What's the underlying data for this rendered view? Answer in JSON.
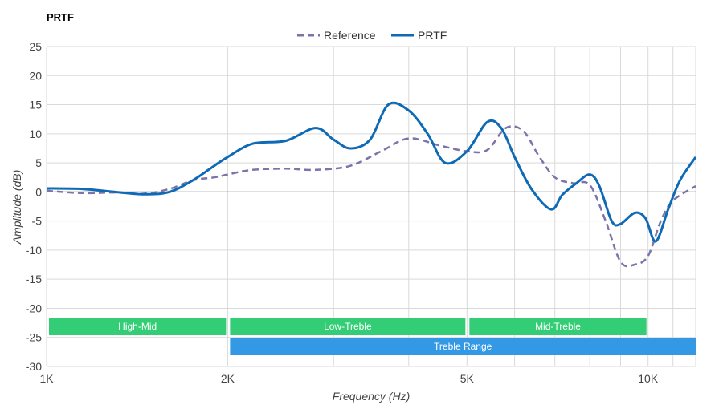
{
  "chart_data": {
    "type": "line",
    "title": "PRTF",
    "xlabel": "Frequency (Hz)",
    "ylabel": "Amplitude (dB)",
    "x_scale": "log",
    "xlim": [
      1000,
      12000
    ],
    "ylim": [
      -30,
      25
    ],
    "x_ticks": [
      {
        "value": 1000,
        "label": "1K"
      },
      {
        "value": 2000,
        "label": "2K"
      },
      {
        "value": 5000,
        "label": "5K"
      },
      {
        "value": 10000,
        "label": "10K"
      }
    ],
    "y_ticks": [
      25,
      20,
      15,
      10,
      5,
      0,
      -5,
      -10,
      -15,
      -20,
      -25,
      -30
    ],
    "grid": true,
    "legend": "top-center",
    "series": [
      {
        "name": "Reference",
        "style": "dashed",
        "color": "#7a74a8",
        "x": [
          1000,
          1150,
          1300,
          1450,
          1600,
          1750,
          1900,
          2000,
          2200,
          2500,
          2800,
          3200,
          3600,
          4000,
          4500,
          5000,
          5400,
          5800,
          6200,
          6600,
          7000,
          7500,
          8000,
          8500,
          9000,
          9500,
          10000,
          10500,
          11000,
          12000
        ],
        "values": [
          0.2,
          -0.2,
          -0.1,
          -0.3,
          0.5,
          2.0,
          2.5,
          3.0,
          3.8,
          4.0,
          3.8,
          4.5,
          7.0,
          9.2,
          8.0,
          7.0,
          7.2,
          11.0,
          10.5,
          6.0,
          2.5,
          1.5,
          1.2,
          -5.0,
          -12.0,
          -12.5,
          -11.0,
          -5.0,
          -1.5,
          1.0
        ]
      },
      {
        "name": "PRTF",
        "style": "solid",
        "color": "#0f6ab5",
        "x": [
          1000,
          1150,
          1300,
          1450,
          1600,
          1750,
          1900,
          2000,
          2200,
          2500,
          2800,
          3000,
          3200,
          3450,
          3700,
          4000,
          4300,
          4600,
          5000,
          5400,
          5700,
          6000,
          6400,
          6900,
          7200,
          7600,
          8000,
          8300,
          8700,
          9000,
          9500,
          9900,
          10300,
          10800,
          11300,
          12000
        ],
        "values": [
          0.6,
          0.5,
          0.0,
          -0.4,
          0.0,
          2.0,
          4.5,
          6.0,
          8.3,
          8.8,
          11.0,
          9.0,
          7.5,
          9.0,
          15.0,
          14.0,
          10.0,
          5.0,
          7.0,
          12.0,
          11.0,
          6.0,
          0.5,
          -3.0,
          -0.5,
          1.5,
          3.0,
          1.0,
          -5.0,
          -5.5,
          -3.6,
          -4.5,
          -8.5,
          -3.0,
          2.0,
          6.0
        ]
      }
    ],
    "bands": [
      {
        "label": "High-Mid",
        "from": 1000,
        "to": 2000,
        "color": "#32cd74",
        "row": 1
      },
      {
        "label": "Low-Treble",
        "from": 2000,
        "to": 5000,
        "color": "#32cd74",
        "row": 1
      },
      {
        "label": "Mid-Treble",
        "from": 5000,
        "to": 10000,
        "color": "#32cd74",
        "row": 1
      },
      {
        "label": "Treble Range",
        "from": 2000,
        "to": 12000,
        "color": "#3399e5",
        "row": 2
      }
    ]
  }
}
